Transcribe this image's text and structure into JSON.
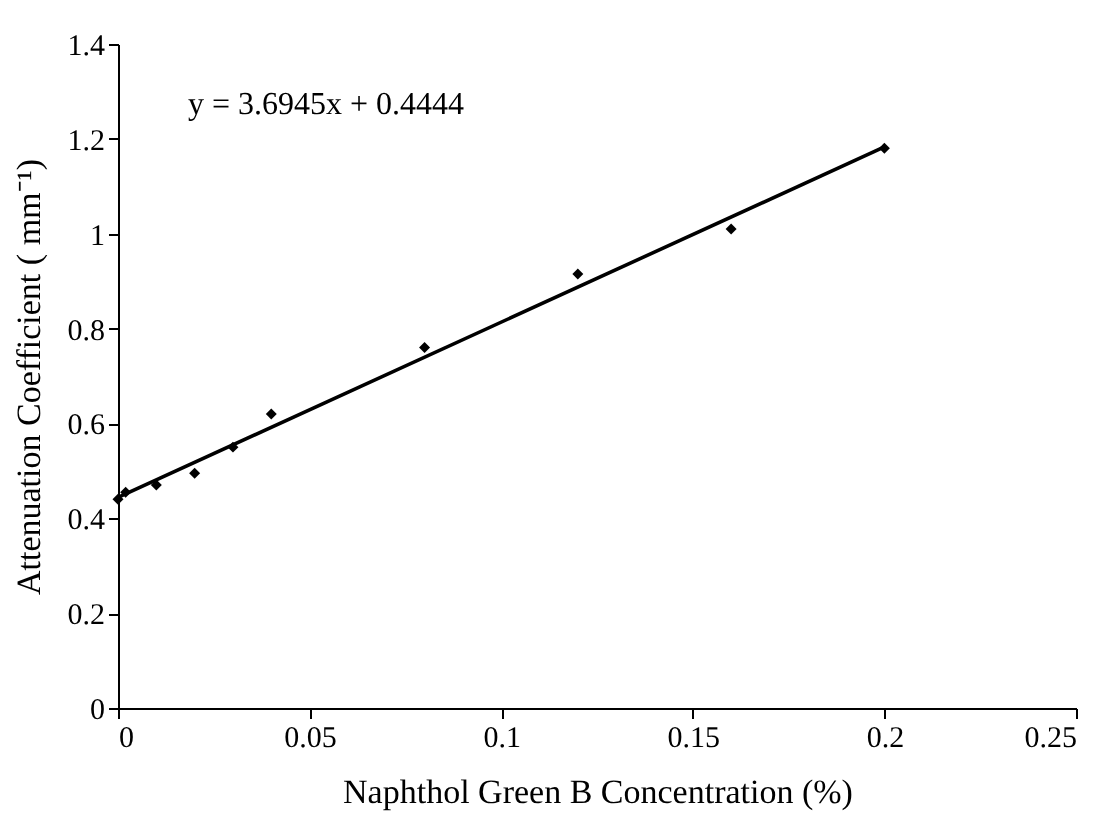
{
  "chart_data": {
    "type": "scatter",
    "xlabel": "Naphthol Green B Concentration (%)",
    "ylabel": "Attenuation Coefficient ( mm⁻¹)",
    "annotations": [
      "y = 3.6945x + 0.4444"
    ],
    "xlim": [
      0,
      0.25
    ],
    "xticks": [
      0,
      0.05,
      0.1,
      0.15,
      0.2,
      0.25
    ],
    "ylim": [
      0,
      1.4
    ],
    "yticks": [
      0,
      0.2,
      0.4,
      0.6,
      0.8,
      1,
      1.2,
      1.4
    ],
    "grid": false,
    "marker": "diamond",
    "series": [
      {
        "color": "#000000",
        "x": [
          0,
          0.002,
          0.01,
          0.02,
          0.03,
          0.04,
          0.08,
          0.12,
          0.16,
          0.2
        ],
        "values": [
          0.44,
          0.455,
          0.47,
          0.495,
          0.55,
          0.62,
          0.76,
          0.915,
          1.01,
          1.18
        ]
      },
      {
        "type": "line",
        "color": "#000000",
        "line_style": "solid",
        "marker": "none",
        "x": [
          0,
          0.2
        ],
        "values": [
          0.444,
          1.183
        ]
      }
    ]
  }
}
